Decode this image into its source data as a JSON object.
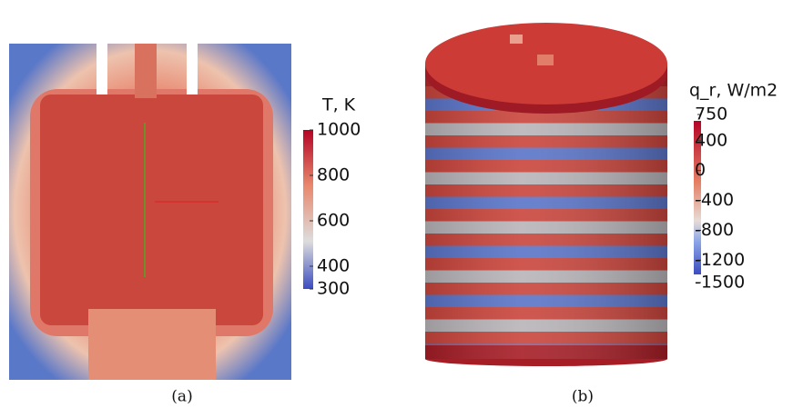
{
  "panels": [
    {
      "colorbar": {
        "title": "T, K",
        "lim": [
          300,
          1000
        ],
        "ticks": [
          300,
          400,
          600,
          800,
          1000
        ]
      },
      "caption": "(a)"
    },
    {
      "colorbar": {
        "title": "q_r, W/m2",
        "lim": [
          -1500,
          750
        ],
        "ticks": [
          -1500,
          -1200,
          -800,
          -400,
          0,
          400,
          750
        ]
      },
      "caption": "(b)"
    }
  ]
}
